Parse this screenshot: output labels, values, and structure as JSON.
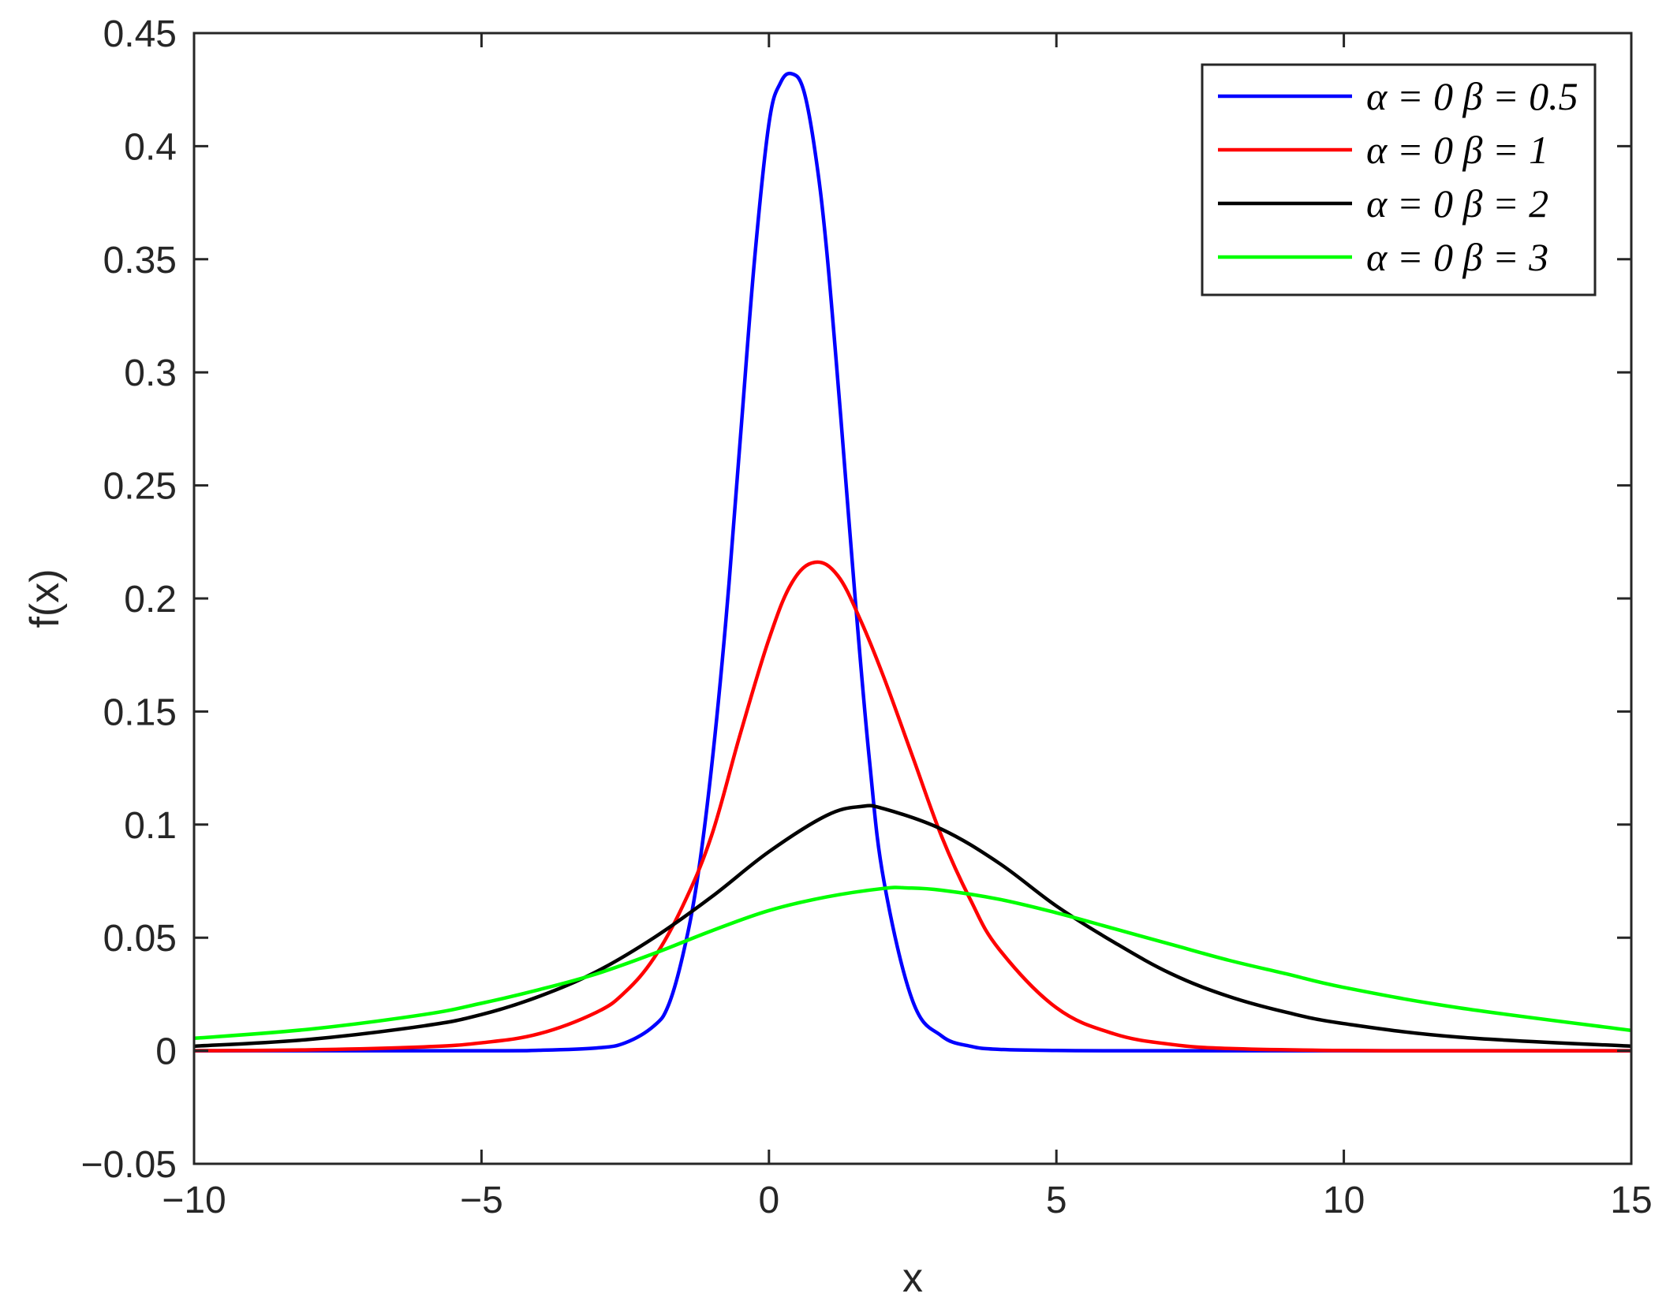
{
  "chart_data": {
    "type": "line",
    "title": "",
    "xlabel": "x",
    "ylabel": "f(x)",
    "xlim": [
      -10,
      15
    ],
    "ylim": [
      -0.05,
      0.45
    ],
    "xticks": [
      -10,
      -5,
      0,
      5,
      10,
      15
    ],
    "xtick_labels": [
      "−10",
      "−5",
      "0",
      "5",
      "10",
      "15"
    ],
    "yticks": [
      -0.05,
      0,
      0.05,
      0.1,
      0.15,
      0.2,
      0.25,
      0.3,
      0.35,
      0.4,
      0.45
    ],
    "ytick_labels": [
      "−0.05",
      "0",
      "0.05",
      "0.1",
      "0.15",
      "0.2",
      "0.25",
      "0.3",
      "0.35",
      "0.4",
      "0.45"
    ],
    "grid": false,
    "legend_position": "top-right",
    "series": [
      {
        "name": "α = 0 β = 0.5",
        "color": "#0000ff",
        "x": [
          -10,
          -5,
          -4,
          -3,
          -2.5,
          -2,
          -1.75,
          -1.5,
          -1.25,
          -1,
          -0.75,
          -0.5,
          -0.25,
          0,
          0.2,
          0.4,
          0.6,
          0.8,
          1,
          1.25,
          1.5,
          1.75,
          2,
          2.5,
          3,
          3.5,
          4,
          5,
          6,
          8,
          10,
          15
        ],
        "y": [
          0,
          0,
          0.0002,
          0.0012,
          0.0035,
          0.011,
          0.02,
          0.042,
          0.075,
          0.125,
          0.19,
          0.27,
          0.35,
          0.41,
          0.428,
          0.432,
          0.425,
          0.398,
          0.355,
          0.28,
          0.2,
          0.128,
          0.075,
          0.022,
          0.0066,
          0.002,
          0.0006,
          0.0001,
          0,
          0,
          0,
          0
        ]
      },
      {
        "name": "α = 0 β = 1",
        "color": "#ff0000",
        "x": [
          -10,
          -8,
          -6,
          -5,
          -4,
          -3,
          -2.5,
          -2,
          -1.5,
          -1,
          -0.5,
          0,
          0.4,
          0.8,
          1.2,
          1.6,
          2,
          2.5,
          3,
          3.5,
          4,
          5,
          6,
          7,
          8,
          10,
          12,
          15
        ],
        "y": [
          0,
          0.0004,
          0.0017,
          0.0035,
          0.0075,
          0.017,
          0.026,
          0.041,
          0.064,
          0.095,
          0.14,
          0.182,
          0.207,
          0.216,
          0.21,
          0.19,
          0.165,
          0.13,
          0.095,
          0.067,
          0.045,
          0.019,
          0.0075,
          0.0028,
          0.001,
          0.0001,
          0,
          0
        ]
      },
      {
        "name": "α = 0 β = 2",
        "color": "#000000",
        "x": [
          -10,
          -8,
          -6,
          -5,
          -4,
          -3,
          -2,
          -1,
          0,
          1,
          1.6,
          2,
          3,
          4,
          5,
          6,
          7,
          8,
          9,
          10,
          12,
          15
        ],
        "y": [
          0.002,
          0.005,
          0.011,
          0.016,
          0.024,
          0.035,
          0.05,
          0.068,
          0.088,
          0.104,
          0.108,
          0.107,
          0.098,
          0.083,
          0.064,
          0.048,
          0.034,
          0.024,
          0.017,
          0.012,
          0.006,
          0.002
        ]
      },
      {
        "name": "α = 0 β = 3",
        "color": "#00ff00",
        "x": [
          -10,
          -8,
          -6,
          -5,
          -4,
          -3,
          -2,
          -1,
          0,
          1,
          2,
          2.4,
          3,
          4,
          5,
          6,
          7,
          8,
          9,
          10,
          12,
          15
        ],
        "y": [
          0.0055,
          0.0095,
          0.016,
          0.021,
          0.027,
          0.034,
          0.043,
          0.053,
          0.062,
          0.068,
          0.0718,
          0.072,
          0.071,
          0.067,
          0.061,
          0.054,
          0.047,
          0.04,
          0.034,
          0.028,
          0.019,
          0.009
        ]
      }
    ]
  }
}
